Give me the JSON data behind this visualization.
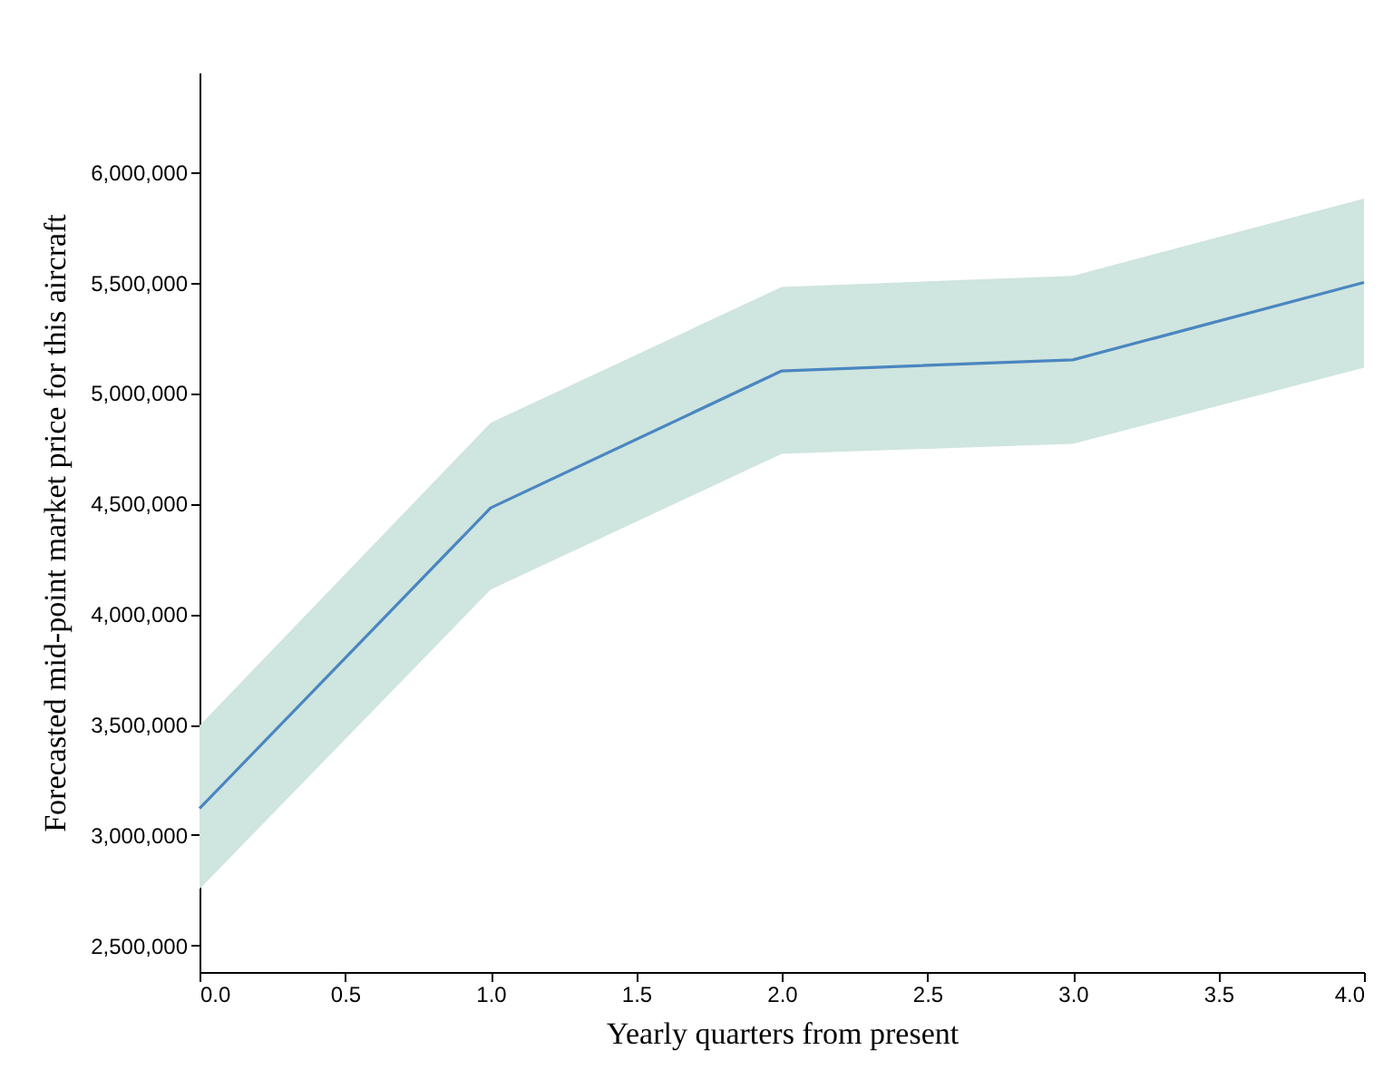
{
  "chart_data": {
    "type": "line",
    "xlabel": "Yearly quarters from present",
    "ylabel": "Forecasted mid-point market price for this aircraft",
    "x": [
      0,
      1,
      2,
      3,
      4
    ],
    "series": [
      {
        "color": "#4a86c0",
        "values": [
          3120000,
          4480000,
          5100000,
          5150000,
          5500000
        ],
        "lower": [
          2755000,
          4110000,
          4725000,
          4770000,
          5115000
        ],
        "upper": [
          3495000,
          4865000,
          5480000,
          5530000,
          5880000
        ]
      }
    ],
    "xlim": [
      0,
      4
    ],
    "xticks": [
      {
        "value": 0,
        "label": "0.0"
      },
      {
        "value": 0.5,
        "label": "0.5"
      },
      {
        "value": 1,
        "label": "1.0"
      },
      {
        "value": 1.5,
        "label": "1.5"
      },
      {
        "value": 2,
        "label": "2.0"
      },
      {
        "value": 2.5,
        "label": "2.5"
      },
      {
        "value": 3,
        "label": "3.0"
      },
      {
        "value": 3.5,
        "label": "3.5"
      },
      {
        "value": 4,
        "label": "4.0"
      }
    ],
    "ylim": [
      2380000,
      6450000
    ],
    "yticks": [
      {
        "value": 2500000,
        "label": "2,500,000"
      },
      {
        "value": 3000000,
        "label": "3,000,000"
      },
      {
        "value": 3500000,
        "label": "3,500,000"
      },
      {
        "value": 4000000,
        "label": "4,000,000"
      },
      {
        "value": 4500000,
        "label": "4,500,000"
      },
      {
        "value": 5000000,
        "label": "5,000,000"
      },
      {
        "value": 5500000,
        "label": "5,500,000"
      },
      {
        "value": 6000000,
        "label": "6,000,000"
      }
    ],
    "grid": false,
    "marker": "none",
    "line_style": "solid"
  }
}
